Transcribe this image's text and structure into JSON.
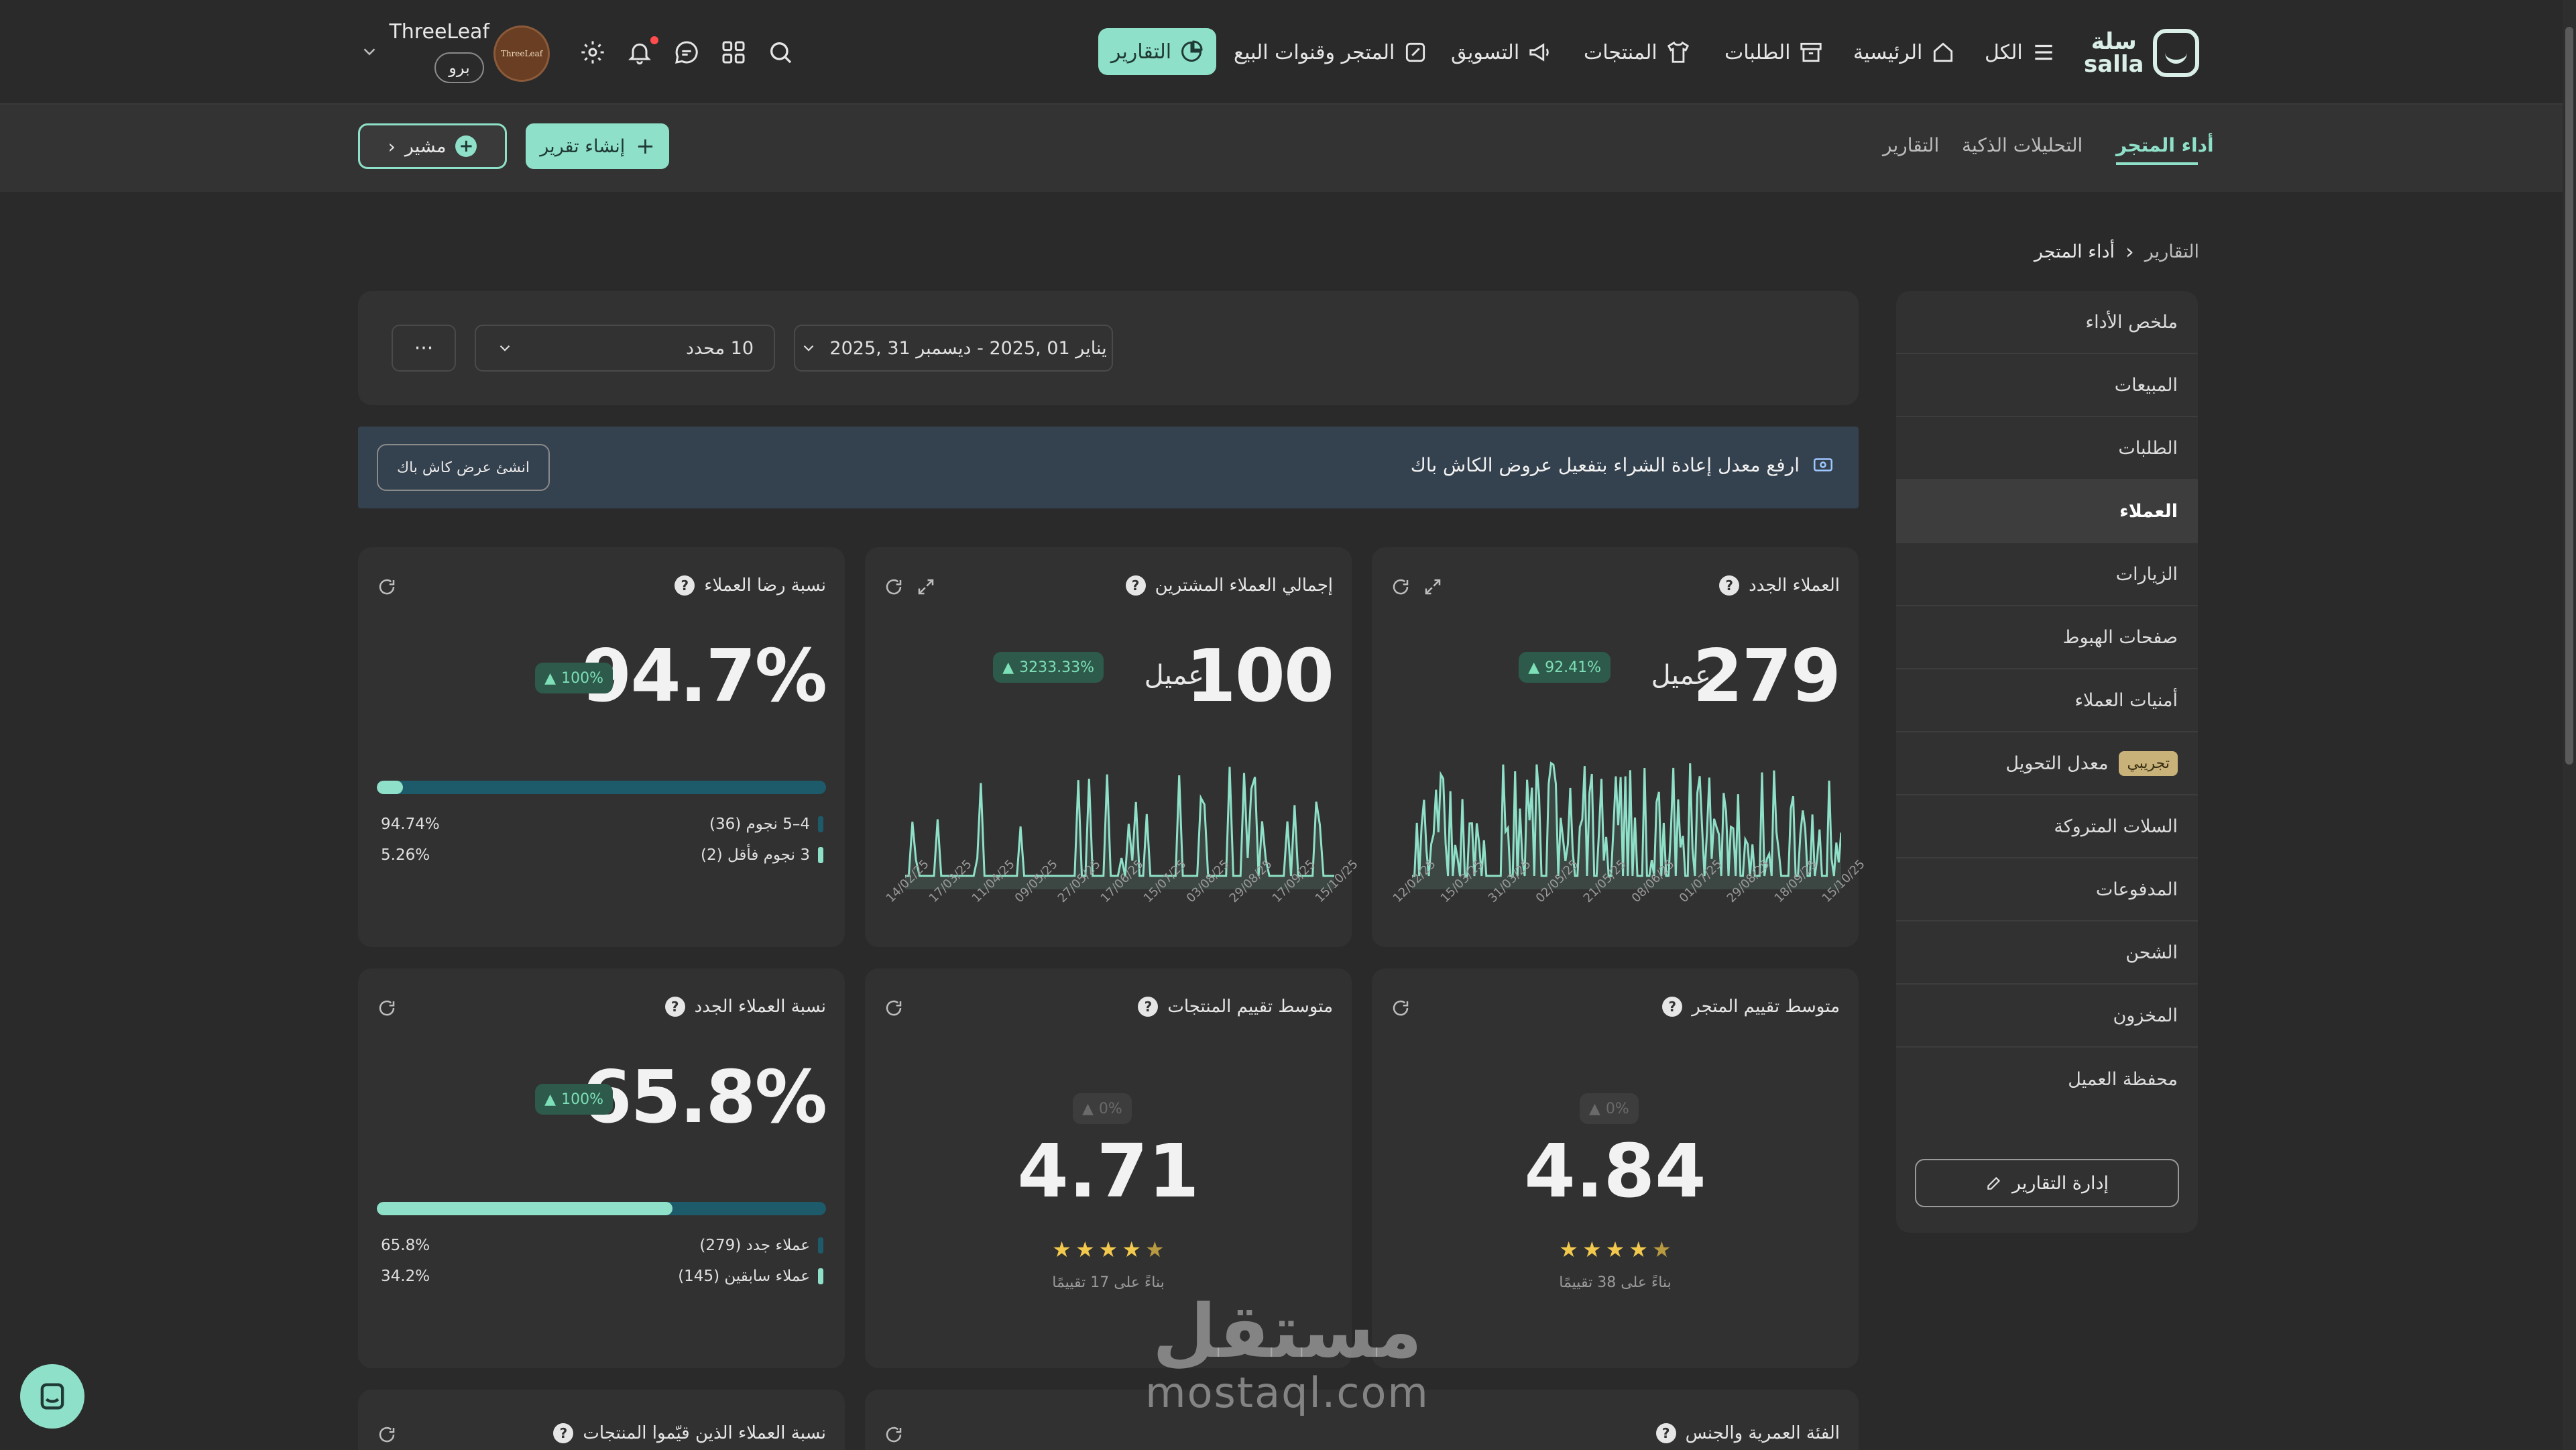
{
  "header": {
    "logo_text": "سلة\nsalla",
    "nav": {
      "all": "الكل",
      "home": "الرئيسية",
      "orders": "الطلبات",
      "products": "المنتجات",
      "marketing": "التسويق",
      "store_channels": "المتجر وقنوات البيع",
      "reports": "التقارير"
    },
    "store_name": "ThreeLeaf",
    "plan_badge": "برو",
    "avatar_text": "ThreeLeaf"
  },
  "subnav": {
    "tabs": [
      "أداء المتجر",
      "التحليلات الذكية",
      "التقارير"
    ],
    "create_report": "إنشاء تقرير",
    "mushir": "مشير"
  },
  "breadcrumb": {
    "root": "التقارير",
    "current": "أداء المتجر"
  },
  "sidebar": {
    "items": [
      {
        "label": "ملخص الأداء"
      },
      {
        "label": "المبيعات"
      },
      {
        "label": "الطلبات"
      },
      {
        "label": "العملاء"
      },
      {
        "label": "الزيارات"
      },
      {
        "label": "صفحات الهبوط"
      },
      {
        "label": "أمنيات العملاء"
      },
      {
        "label": "معدل التحويل",
        "badge": "تجريبي"
      },
      {
        "label": "السلات المتروكة"
      },
      {
        "label": "المدفوعات"
      },
      {
        "label": "الشحن"
      },
      {
        "label": "المخزون"
      },
      {
        "label": "محفظة العميل"
      }
    ],
    "active_index": 3,
    "manage_button": "إدارة التقارير"
  },
  "filters": {
    "date_range": "يناير 01 ,2025  -  ديسمبر 31 ,2025",
    "selection": "10 محدد",
    "more": "···"
  },
  "banner": {
    "text": "ارفع معدل إعادة الشراء بتفعيل عروض الكاش باك",
    "button": "انشئ عرض كاش باك"
  },
  "cards": {
    "new_customers": {
      "title": "العملاء الجدد",
      "value": "279",
      "unit": "عميل",
      "change": "92.41%",
      "x_ticks": [
        "15/10/25",
        "18/09/25",
        "29/08/25",
        "01/07/25",
        "08/06/25",
        "21/05/25",
        "02/05/25",
        "31/03/25",
        "15/03/25",
        "12/02/25"
      ]
    },
    "total_buyers": {
      "title": "إجمالي العملاء المشترين",
      "value": "100",
      "unit": "عميل",
      "change": "3233.33%",
      "x_ticks": [
        "15/10/25",
        "17/09/25",
        "29/08/25",
        "03/08/25",
        "15/07/25",
        "17/06/25",
        "27/05/25",
        "09/05/25",
        "11/04/25",
        "17/03/25",
        "14/02/25"
      ]
    },
    "satisfaction": {
      "title": "نسبة رضا العملاء",
      "value": "94.7%",
      "change": "100%",
      "fill": 0.0526,
      "legend": [
        {
          "label": "4–5 نجوم (36)",
          "value": "94.74%"
        },
        {
          "label": "3 نجوم فأقل (2)",
          "value": "5.26%"
        }
      ]
    },
    "store_rating": {
      "title": "متوسط تقييم المتجر",
      "value": "4.84",
      "change": "0%",
      "note": "بناءً على 38 تقييمًا"
    },
    "product_rating": {
      "title": "متوسط تقييم المنتجات",
      "value": "4.71",
      "change": "0%",
      "note": "بناءً على 17 تقييمًا"
    },
    "new_customers_ratio": {
      "title": "نسبة العملاء الجدد",
      "value": "65.8%",
      "change": "100%",
      "fill": 0.342,
      "legend": [
        {
          "label": "عملاء جدد (279)",
          "value": "65.8%"
        },
        {
          "label": "عملاء سابقين (145)",
          "value": "34.2%"
        }
      ]
    },
    "age_gender": {
      "title": "الفئة العمرية والجنس"
    },
    "rated_products": {
      "title": "نسبة العملاء الذين قيّموا المنتجات"
    }
  },
  "watermark": {
    "arabic": "مستقل",
    "latin": "mostaql.com"
  },
  "colors": {
    "accent": "#8fe0c8",
    "background": "#2a2a2a",
    "card": "#313131",
    "banner": "#34414e",
    "progress_track": "#1d5a6a"
  }
}
